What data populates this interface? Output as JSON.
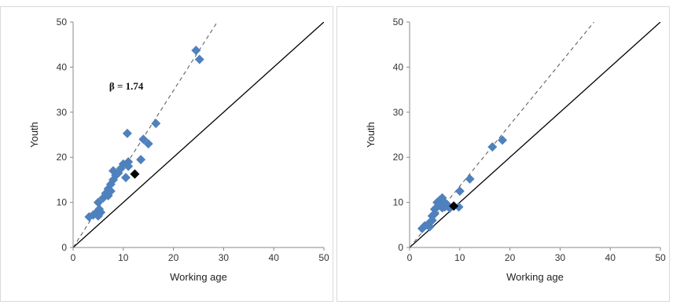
{
  "chart_data": [
    {
      "type": "scatter",
      "xlabel": "Working age",
      "ylabel": "Youth",
      "xlim": [
        0,
        50
      ],
      "ylim": [
        0,
        50
      ],
      "xticks": [
        "0",
        "10",
        "20",
        "30",
        "40",
        "50"
      ],
      "yticks": [
        "0",
        "10",
        "20",
        "30",
        "40",
        "50"
      ],
      "grid": false,
      "annotation": "β = 1.74",
      "reference_line": {
        "style": "solid",
        "color": "#000000",
        "slope": 1,
        "intercept": 0
      },
      "fit_line": {
        "style": "dashed",
        "color": "#555555",
        "slope": 1.74,
        "intercept": 0
      },
      "series": [
        {
          "marker": "diamond",
          "color": "#4f81bd",
          "points": [
            [
              3.2,
              6.8
            ],
            [
              4.0,
              7.2
            ],
            [
              4.5,
              7.6
            ],
            [
              5.0,
              7.0
            ],
            [
              5.2,
              8.5
            ],
            [
              5.5,
              7.8
            ],
            [
              5.0,
              10.0
            ],
            [
              6.0,
              11.0
            ],
            [
              6.5,
              12.0
            ],
            [
              7.0,
              11.5
            ],
            [
              7.0,
              13.0
            ],
            [
              7.5,
              14.0
            ],
            [
              7.5,
              12.5
            ],
            [
              8.0,
              15.0
            ],
            [
              8.0,
              17.0
            ],
            [
              8.5,
              16.0
            ],
            [
              9.0,
              16.5
            ],
            [
              9.5,
              17.5
            ],
            [
              10.0,
              18.5
            ],
            [
              10.5,
              15.5
            ],
            [
              11.0,
              19.0
            ],
            [
              11.0,
              18.0
            ],
            [
              10.8,
              25.3
            ],
            [
              13.5,
              19.5
            ],
            [
              14.0,
              24.0
            ],
            [
              15.0,
              23.0
            ],
            [
              16.5,
              27.5
            ],
            [
              24.5,
              43.7
            ],
            [
              25.2,
              41.7
            ]
          ]
        },
        {
          "marker": "diamond",
          "color": "#000000",
          "points": [
            [
              12.3,
              16.3
            ]
          ]
        }
      ]
    },
    {
      "type": "scatter",
      "xlabel": "Working age",
      "ylabel": "Youth",
      "xlim": [
        0,
        50
      ],
      "ylim": [
        0,
        50
      ],
      "xticks": [
        "0",
        "10",
        "20",
        "30",
        "40",
        "50"
      ],
      "yticks": [
        "0",
        "10",
        "20",
        "30",
        "40",
        "50"
      ],
      "grid": false,
      "reference_line": {
        "style": "solid",
        "color": "#000000",
        "slope": 1,
        "intercept": 0
      },
      "fit_line": {
        "style": "dashed",
        "color": "#555555",
        "slope": 1.36,
        "intercept": 0
      },
      "series": [
        {
          "marker": "diamond",
          "color": "#4f81bd",
          "points": [
            [
              2.5,
              4.2
            ],
            [
              3.0,
              4.8
            ],
            [
              3.5,
              5.0
            ],
            [
              4.0,
              5.5
            ],
            [
              4.0,
              4.6
            ],
            [
              4.5,
              6.0
            ],
            [
              4.5,
              7.0
            ],
            [
              5.0,
              7.5
            ],
            [
              5.0,
              8.5
            ],
            [
              5.5,
              9.0
            ],
            [
              5.5,
              10.0
            ],
            [
              6.0,
              10.5
            ],
            [
              6.0,
              9.5
            ],
            [
              6.5,
              11.0
            ],
            [
              6.5,
              8.8
            ],
            [
              7.0,
              10.0
            ],
            [
              7.0,
              9.0
            ],
            [
              7.5,
              9.5
            ],
            [
              8.0,
              8.7
            ],
            [
              10.0,
              12.5
            ],
            [
              9.8,
              9.0
            ],
            [
              12.0,
              15.2
            ],
            [
              16.5,
              22.3
            ],
            [
              18.5,
              23.8
            ]
          ]
        },
        {
          "marker": "diamond",
          "color": "#000000",
          "points": [
            [
              8.8,
              9.2
            ]
          ]
        }
      ]
    }
  ]
}
